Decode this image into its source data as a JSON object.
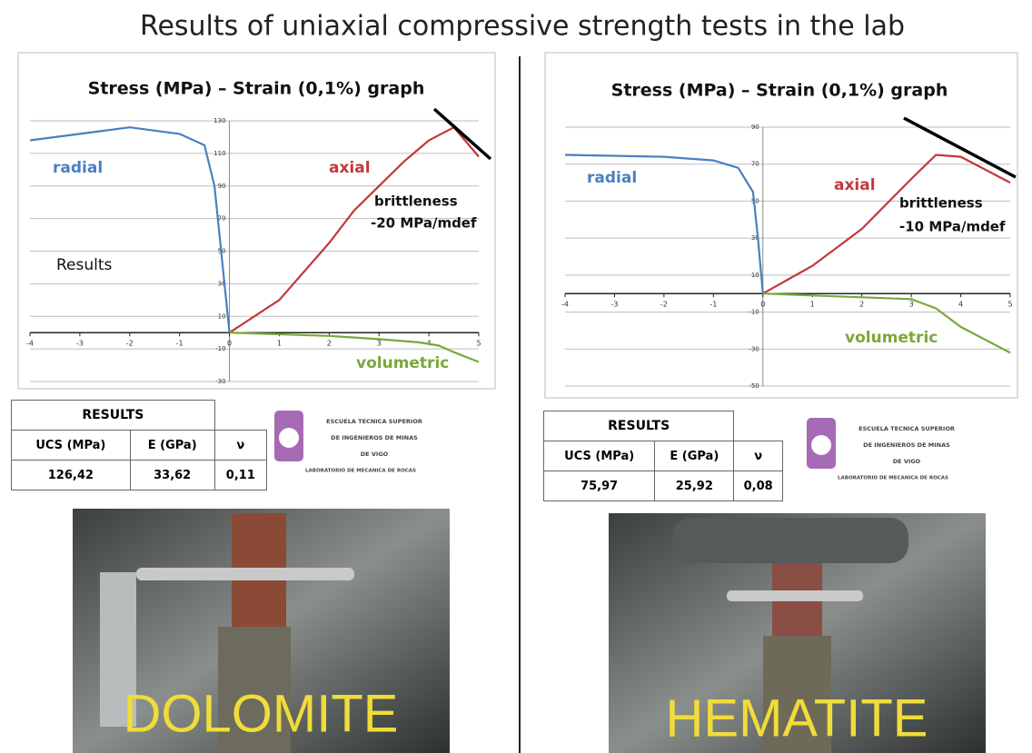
{
  "title": "Results of uniaxial compressive strength tests in the lab",
  "chart_data": [
    {
      "type": "line",
      "title": "Stress (MPa) – Strain (0,1%) graph",
      "xlim": [
        -4,
        5
      ],
      "xticks": [
        -4,
        -3,
        -2,
        -1,
        0,
        1,
        2,
        3,
        4,
        5
      ],
      "ylim": [
        -30,
        130
      ],
      "yticks": [
        130,
        110,
        90,
        70,
        50,
        30,
        10,
        -10,
        -30
      ],
      "grid": true,
      "series": [
        {
          "name": "radial",
          "color": "#4a7fc1",
          "x": [
            -4,
            -3,
            -2,
            -1.5,
            -1,
            -0.5,
            -0.3,
            -0.2,
            -0.1,
            0
          ],
          "values": [
            118,
            122,
            126,
            124,
            122,
            115,
            90,
            60,
            30,
            0
          ]
        },
        {
          "name": "axial",
          "color": "#c0393b",
          "x": [
            0,
            1,
            2,
            2.5,
            3,
            3.5,
            4,
            4.5,
            5
          ],
          "values": [
            0,
            20,
            55,
            75,
            90,
            105,
            118,
            126,
            108
          ]
        },
        {
          "name": "volumetric",
          "color": "#7aa83a",
          "x": [
            0,
            2,
            3,
            3.8,
            4.2,
            4.5,
            5
          ],
          "values": [
            0,
            -2,
            -4,
            -6,
            -8,
            -12,
            -18
          ]
        }
      ],
      "annotations": [
        "brittleness",
        "-20 MPa/mdef",
        "Results"
      ]
    },
    {
      "type": "line",
      "title": "Stress (MPa) – Strain (0,1%) graph",
      "xlim": [
        -4,
        5
      ],
      "xticks": [
        -4,
        -3,
        -2,
        -1,
        0,
        1,
        2,
        3,
        4,
        5
      ],
      "ylim": [
        -50,
        90
      ],
      "yticks": [
        90,
        70,
        50,
        30,
        10,
        -10,
        -30,
        -50
      ],
      "grid": true,
      "series": [
        {
          "name": "radial",
          "color": "#4a7fc1",
          "x": [
            -4,
            -2,
            -1,
            -0.5,
            -0.2,
            -0.1,
            0
          ],
          "values": [
            75,
            74,
            72,
            68,
            55,
            30,
            0
          ]
        },
        {
          "name": "axial",
          "color": "#c0393b",
          "x": [
            0,
            1,
            2,
            3,
            3.5,
            4,
            5
          ],
          "values": [
            0,
            15,
            35,
            62,
            75,
            74,
            60
          ]
        },
        {
          "name": "volumetric",
          "color": "#7aa83a",
          "x": [
            0,
            2,
            3,
            3.5,
            4,
            5
          ],
          "values": [
            0,
            -2,
            -3,
            -8,
            -18,
            -32
          ]
        }
      ],
      "annotations": [
        "brittleness",
        "-10 MPa/mdef"
      ]
    }
  ],
  "panels": [
    {
      "table": {
        "title": "RESULTS",
        "header": [
          "UCS (MPa)",
          "E (GPa)",
          "ν"
        ],
        "row": [
          "126,42",
          "33,62",
          "0,11"
        ]
      },
      "logo": [
        "ESCUELA TECNICA SUPERIOR",
        "DE INGENIEROS DE MINAS",
        "DE VIGO",
        "LABORATORIO DE MECANICA DE ROCAS"
      ],
      "photo_label": "DOLOMITE"
    },
    {
      "table": {
        "title": "RESULTS",
        "header": [
          "UCS (MPa)",
          "E (GPa)",
          "ν"
        ],
        "row": [
          "75,97",
          "25,92",
          "0,08"
        ]
      },
      "logo": [
        "ESCUELA TECNICA SUPERIOR",
        "DE INGENIEROS DE MINAS",
        "DE VIGO",
        "LABORATORIO DE MECANICA DE ROCAS"
      ],
      "photo_label": "HEMATITE"
    }
  ]
}
